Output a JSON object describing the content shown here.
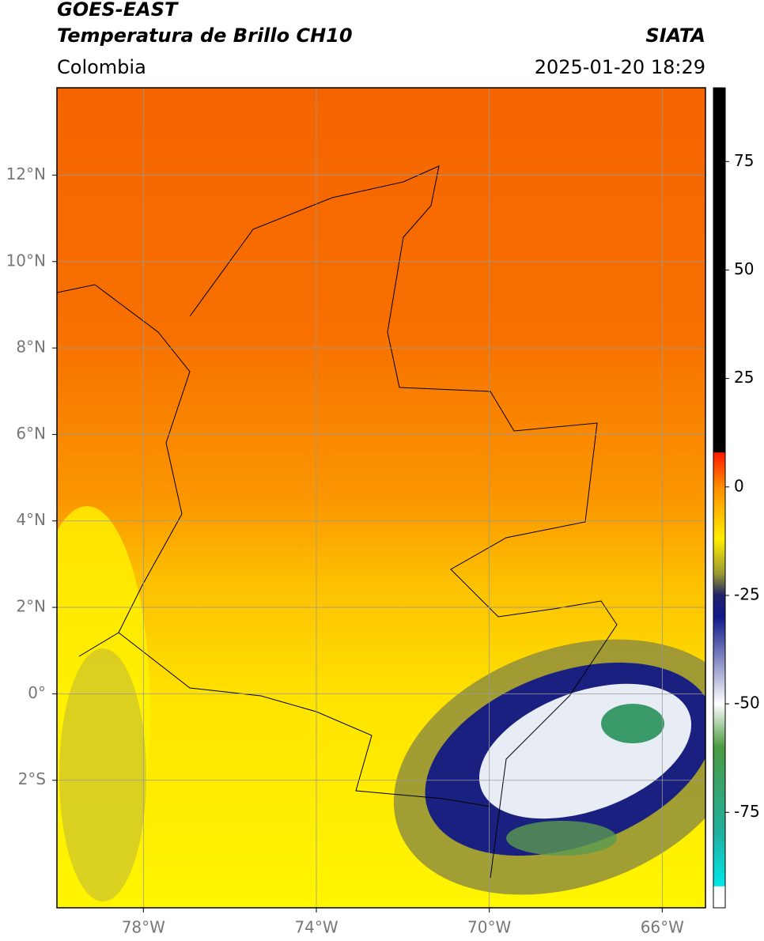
{
  "header": {
    "title": "GOES-EAST",
    "subtitle": "Temperatura de Brillo CH10",
    "region": "Colombia",
    "source": "SIATA",
    "datetime": "2025-01-20 18:29"
  },
  "map": {
    "xlim": [
      -80,
      -65
    ],
    "ylim": [
      -4.95,
      14.02
    ],
    "grid": true,
    "xticks": [
      {
        "value": -78,
        "label": "78°W"
      },
      {
        "value": -74,
        "label": "74°W"
      },
      {
        "value": -70,
        "label": "70°W"
      },
      {
        "value": -66,
        "label": "66°W"
      }
    ],
    "yticks": [
      {
        "value": 12,
        "label": "12°N"
      },
      {
        "value": 10,
        "label": "10°N"
      },
      {
        "value": 8,
        "label": "8°N"
      },
      {
        "value": 6,
        "label": "6°N"
      },
      {
        "value": 4,
        "label": "4°N"
      },
      {
        "value": 2,
        "label": "2°N"
      },
      {
        "value": 0,
        "label": "0°"
      },
      {
        "value": -2,
        "label": "2°S"
      }
    ]
  },
  "colorbar": {
    "clim": [
      -97,
      92
    ],
    "ticks": [
      75,
      50,
      25,
      0,
      -25,
      -50,
      -75
    ],
    "stops": [
      {
        "value": 92,
        "color": "#000000"
      },
      {
        "value": 8,
        "color": "#000000"
      },
      {
        "value": 7.9,
        "color": "#ff1a00"
      },
      {
        "value": 0,
        "color": "#ff8c00"
      },
      {
        "value": -12,
        "color": "#ffee00"
      },
      {
        "value": -20,
        "color": "#9a9a30"
      },
      {
        "value": -25,
        "color": "#20206a"
      },
      {
        "value": -30,
        "color": "#101a8a"
      },
      {
        "value": -50,
        "color": "#ffffff"
      },
      {
        "value": -60,
        "color": "#4a9a40"
      },
      {
        "value": -80,
        "color": "#20b0a0"
      },
      {
        "value": -92,
        "color": "#00e8e8"
      },
      {
        "value": -92.1,
        "color": "#ffffff"
      },
      {
        "value": -97,
        "color": "#ffffff"
      }
    ]
  }
}
